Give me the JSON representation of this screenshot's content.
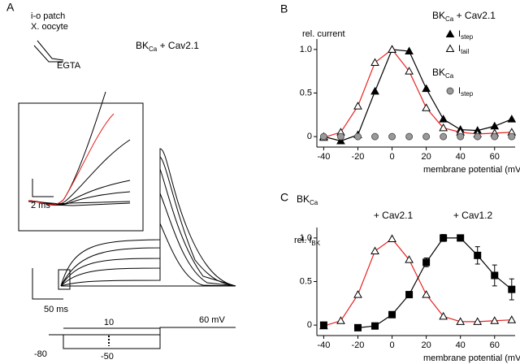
{
  "panel_a": {
    "label": "A",
    "patch_text": [
      "i-o patch",
      "X. oocyte"
    ],
    "electrode_label": "EGTA",
    "construct": {
      "base": "BK",
      "sub": "Ca",
      "after": " + Cav2.1"
    },
    "inset_scale": "2 ms",
    "main_scale": "50 ms",
    "protocol_labels": [
      "10",
      "-80",
      "-50",
      "60 mV"
    ]
  },
  "chart_data": [
    {
      "type": "line",
      "panel": "B",
      "ylabel": "rel. current",
      "xlabel": "membrane potential (mV)",
      "x": [
        -40,
        -30,
        -20,
        -10,
        0,
        10,
        20,
        30,
        40,
        50,
        60,
        70
      ],
      "xlim": [
        -44,
        72
      ],
      "xticks": [
        -40,
        -20,
        0,
        20,
        40,
        60
      ],
      "ylim": [
        -0.12,
        1.12
      ],
      "yticks": [
        0,
        0.5,
        {
          "value": 1,
          "label": "1.0"
        }
      ],
      "legend_groups": [
        {
          "title": {
            "base": "BK",
            "sub": "Ca",
            "after": " + Cav2.1"
          }
        },
        {
          "title": {
            "base": "BK",
            "sub": "Ca"
          }
        }
      ],
      "series": [
        {
          "name": {
            "base": "I",
            "sub": "step"
          },
          "group": 0,
          "color": "#000000",
          "marker": "triangle",
          "marker_fill": "#000000",
          "line": true,
          "values": [
            0,
            -0.05,
            0.02,
            0.52,
            1.0,
            0.98,
            0.55,
            0.2,
            0.08,
            0.07,
            0.12,
            0.2
          ]
        },
        {
          "name": {
            "base": "I",
            "sub": "tail"
          },
          "group": 0,
          "color": "#e8201e",
          "marker": "triangle",
          "marker_fill": "#ffffff",
          "line": true,
          "values": [
            -0.01,
            0.05,
            0.35,
            0.85,
            1.0,
            0.75,
            0.33,
            0.1,
            0.05,
            0.03,
            0.04,
            0.05
          ]
        },
        {
          "name": {
            "base": "I",
            "sub": "step"
          },
          "group": 1,
          "color": "#555555",
          "marker": "circle",
          "marker_fill": "#999999",
          "line": false,
          "values": [
            0,
            0,
            0,
            0,
            0,
            0,
            0,
            0,
            0,
            0,
            0,
            0
          ]
        }
      ]
    },
    {
      "type": "line",
      "panel": "C",
      "title": {
        "base": "BK",
        "sub": "Ca"
      },
      "ylabel": {
        "base": "rel. I",
        "sub": "BK"
      },
      "xlabel": "membrane potential (mV)",
      "annotations": [
        "+ Cav2.1",
        "+ Cav1.2"
      ],
      "x": [
        -40,
        -30,
        -20,
        -10,
        0,
        10,
        20,
        30,
        40,
        50,
        60,
        70
      ],
      "xlim": [
        -44,
        72
      ],
      "xticks": [
        -40,
        -20,
        0,
        20,
        40,
        60
      ],
      "ylim": [
        -0.12,
        1.12
      ],
      "yticks": [
        0,
        0.5,
        {
          "value": 1,
          "label": "1.0"
        }
      ],
      "series": [
        {
          "color": "#e8201e",
          "marker": "triangle",
          "marker_fill": "#ffffff",
          "line": true,
          "values": [
            -0.01,
            0.05,
            0.35,
            0.85,
            0.99,
            0.75,
            0.35,
            0.1,
            0.04,
            0.04,
            0.05,
            0.06
          ]
        },
        {
          "color": "#000000",
          "marker": "square",
          "marker_fill": "#000000",
          "line": true,
          "values": [
            0,
            null,
            -0.03,
            -0.01,
            0.12,
            0.35,
            0.72,
            1.0,
            1.0,
            0.8,
            0.57,
            0.41
          ],
          "errors": [
            0.02,
            null,
            0.02,
            0.02,
            0.02,
            0.03,
            0.05,
            0.04,
            0.02,
            0.1,
            0.12,
            0.12
          ]
        }
      ]
    }
  ]
}
